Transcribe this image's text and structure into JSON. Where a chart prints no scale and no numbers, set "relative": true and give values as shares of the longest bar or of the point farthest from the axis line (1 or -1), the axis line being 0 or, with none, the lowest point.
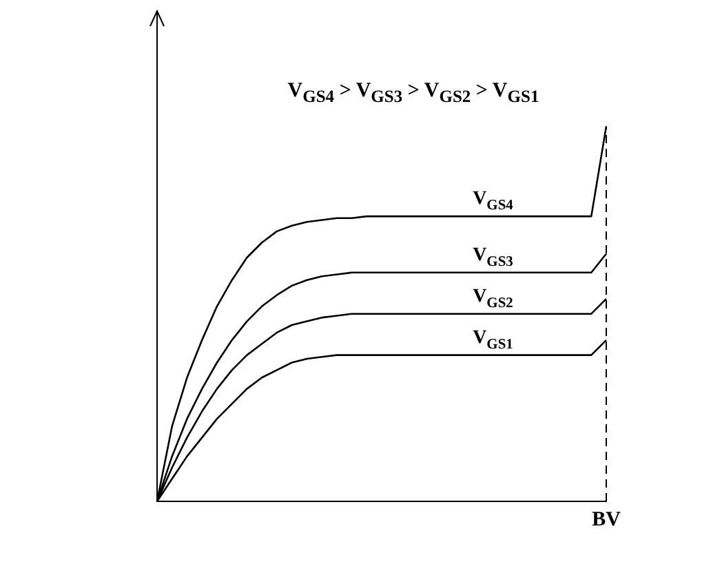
{
  "chart_data": {
    "type": "line",
    "relative": true,
    "title": "V$_{GS4}$ > V$_{GS3}$ > V$_{GS2}$ > V$_{GS1}$",
    "categories": [
      null,
      null,
      null,
      null,
      null,
      null,
      null,
      null,
      null,
      null,
      null,
      null,
      null,
      null,
      null,
      null,
      null,
      null,
      null,
      null,
      null,
      null,
      null,
      null,
      null,
      null,
      null,
      null,
      null,
      null,
      null
    ],
    "series": [
      {
        "name": "V$_{GS4}$",
        "color": "#000000",
        "values": [
          0,
          0.2,
          0.33,
          0.43,
          0.52,
          0.59,
          0.65,
          0.69,
          0.72,
          0.735,
          0.745,
          0.75,
          0.755,
          0.755,
          0.76,
          0.76,
          0.76,
          0.76,
          0.76,
          0.76,
          0.76,
          0.76,
          0.76,
          0.76,
          0.76,
          0.76,
          0.76,
          0.76,
          0.76,
          0.76,
          1
        ]
      },
      {
        "name": "V$_{GS3}$",
        "color": "#000000",
        "values": [
          0,
          0.12,
          0.22,
          0.3,
          0.37,
          0.43,
          0.48,
          0.52,
          0.55,
          0.575,
          0.59,
          0.6,
          0.605,
          0.61,
          0.61,
          0.61,
          0.61,
          0.61,
          0.61,
          0.61,
          0.61,
          0.61,
          0.61,
          0.61,
          0.61,
          0.61,
          0.61,
          0.61,
          0.61,
          0.61,
          0.66
        ]
      },
      {
        "name": "V$_{GS2}$",
        "color": "#000000",
        "values": [
          0,
          0.09,
          0.17,
          0.24,
          0.3,
          0.35,
          0.39,
          0.42,
          0.45,
          0.47,
          0.48,
          0.49,
          0.495,
          0.5,
          0.5,
          0.5,
          0.5,
          0.5,
          0.5,
          0.5,
          0.5,
          0.5,
          0.5,
          0.5,
          0.5,
          0.5,
          0.5,
          0.5,
          0.5,
          0.5,
          0.54
        ]
      },
      {
        "name": "V$_{GS1}$",
        "color": "#000000",
        "values": [
          0,
          0.06,
          0.12,
          0.17,
          0.22,
          0.26,
          0.3,
          0.33,
          0.35,
          0.37,
          0.38,
          0.385,
          0.39,
          0.39,
          0.39,
          0.39,
          0.39,
          0.39,
          0.39,
          0.39,
          0.39,
          0.39,
          0.39,
          0.39,
          0.39,
          0.39,
          0.39,
          0.39,
          0.39,
          0.39,
          0.43
        ]
      }
    ],
    "annotations": [
      "BV"
    ],
    "grid": false,
    "legend": false,
    "marker": "none",
    "line_style": "solid"
  }
}
